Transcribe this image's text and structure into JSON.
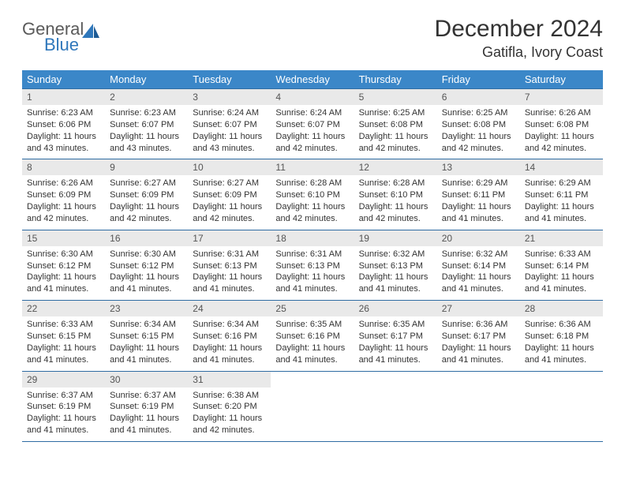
{
  "brand": {
    "top": "General",
    "bottom": "Blue"
  },
  "title": "December 2024",
  "location": "Gatifla, Ivory Coast",
  "colors": {
    "header_bg": "#3b87c8",
    "header_text": "#ffffff",
    "daynum_bg": "#e9e9e9",
    "border": "#2f6ca3",
    "logo_gray": "#5a5a5a",
    "logo_blue": "#2f77bb"
  },
  "weekdays": [
    "Sunday",
    "Monday",
    "Tuesday",
    "Wednesday",
    "Thursday",
    "Friday",
    "Saturday"
  ],
  "weeks": [
    [
      {
        "n": "1",
        "sr": "Sunrise: 6:23 AM",
        "ss": "Sunset: 6:06 PM",
        "dl1": "Daylight: 11 hours",
        "dl2": "and 43 minutes."
      },
      {
        "n": "2",
        "sr": "Sunrise: 6:23 AM",
        "ss": "Sunset: 6:07 PM",
        "dl1": "Daylight: 11 hours",
        "dl2": "and 43 minutes."
      },
      {
        "n": "3",
        "sr": "Sunrise: 6:24 AM",
        "ss": "Sunset: 6:07 PM",
        "dl1": "Daylight: 11 hours",
        "dl2": "and 43 minutes."
      },
      {
        "n": "4",
        "sr": "Sunrise: 6:24 AM",
        "ss": "Sunset: 6:07 PM",
        "dl1": "Daylight: 11 hours",
        "dl2": "and 42 minutes."
      },
      {
        "n": "5",
        "sr": "Sunrise: 6:25 AM",
        "ss": "Sunset: 6:08 PM",
        "dl1": "Daylight: 11 hours",
        "dl2": "and 42 minutes."
      },
      {
        "n": "6",
        "sr": "Sunrise: 6:25 AM",
        "ss": "Sunset: 6:08 PM",
        "dl1": "Daylight: 11 hours",
        "dl2": "and 42 minutes."
      },
      {
        "n": "7",
        "sr": "Sunrise: 6:26 AM",
        "ss": "Sunset: 6:08 PM",
        "dl1": "Daylight: 11 hours",
        "dl2": "and 42 minutes."
      }
    ],
    [
      {
        "n": "8",
        "sr": "Sunrise: 6:26 AM",
        "ss": "Sunset: 6:09 PM",
        "dl1": "Daylight: 11 hours",
        "dl2": "and 42 minutes."
      },
      {
        "n": "9",
        "sr": "Sunrise: 6:27 AM",
        "ss": "Sunset: 6:09 PM",
        "dl1": "Daylight: 11 hours",
        "dl2": "and 42 minutes."
      },
      {
        "n": "10",
        "sr": "Sunrise: 6:27 AM",
        "ss": "Sunset: 6:09 PM",
        "dl1": "Daylight: 11 hours",
        "dl2": "and 42 minutes."
      },
      {
        "n": "11",
        "sr": "Sunrise: 6:28 AM",
        "ss": "Sunset: 6:10 PM",
        "dl1": "Daylight: 11 hours",
        "dl2": "and 42 minutes."
      },
      {
        "n": "12",
        "sr": "Sunrise: 6:28 AM",
        "ss": "Sunset: 6:10 PM",
        "dl1": "Daylight: 11 hours",
        "dl2": "and 42 minutes."
      },
      {
        "n": "13",
        "sr": "Sunrise: 6:29 AM",
        "ss": "Sunset: 6:11 PM",
        "dl1": "Daylight: 11 hours",
        "dl2": "and 41 minutes."
      },
      {
        "n": "14",
        "sr": "Sunrise: 6:29 AM",
        "ss": "Sunset: 6:11 PM",
        "dl1": "Daylight: 11 hours",
        "dl2": "and 41 minutes."
      }
    ],
    [
      {
        "n": "15",
        "sr": "Sunrise: 6:30 AM",
        "ss": "Sunset: 6:12 PM",
        "dl1": "Daylight: 11 hours",
        "dl2": "and 41 minutes."
      },
      {
        "n": "16",
        "sr": "Sunrise: 6:30 AM",
        "ss": "Sunset: 6:12 PM",
        "dl1": "Daylight: 11 hours",
        "dl2": "and 41 minutes."
      },
      {
        "n": "17",
        "sr": "Sunrise: 6:31 AM",
        "ss": "Sunset: 6:13 PM",
        "dl1": "Daylight: 11 hours",
        "dl2": "and 41 minutes."
      },
      {
        "n": "18",
        "sr": "Sunrise: 6:31 AM",
        "ss": "Sunset: 6:13 PM",
        "dl1": "Daylight: 11 hours",
        "dl2": "and 41 minutes."
      },
      {
        "n": "19",
        "sr": "Sunrise: 6:32 AM",
        "ss": "Sunset: 6:13 PM",
        "dl1": "Daylight: 11 hours",
        "dl2": "and 41 minutes."
      },
      {
        "n": "20",
        "sr": "Sunrise: 6:32 AM",
        "ss": "Sunset: 6:14 PM",
        "dl1": "Daylight: 11 hours",
        "dl2": "and 41 minutes."
      },
      {
        "n": "21",
        "sr": "Sunrise: 6:33 AM",
        "ss": "Sunset: 6:14 PM",
        "dl1": "Daylight: 11 hours",
        "dl2": "and 41 minutes."
      }
    ],
    [
      {
        "n": "22",
        "sr": "Sunrise: 6:33 AM",
        "ss": "Sunset: 6:15 PM",
        "dl1": "Daylight: 11 hours",
        "dl2": "and 41 minutes."
      },
      {
        "n": "23",
        "sr": "Sunrise: 6:34 AM",
        "ss": "Sunset: 6:15 PM",
        "dl1": "Daylight: 11 hours",
        "dl2": "and 41 minutes."
      },
      {
        "n": "24",
        "sr": "Sunrise: 6:34 AM",
        "ss": "Sunset: 6:16 PM",
        "dl1": "Daylight: 11 hours",
        "dl2": "and 41 minutes."
      },
      {
        "n": "25",
        "sr": "Sunrise: 6:35 AM",
        "ss": "Sunset: 6:16 PM",
        "dl1": "Daylight: 11 hours",
        "dl2": "and 41 minutes."
      },
      {
        "n": "26",
        "sr": "Sunrise: 6:35 AM",
        "ss": "Sunset: 6:17 PM",
        "dl1": "Daylight: 11 hours",
        "dl2": "and 41 minutes."
      },
      {
        "n": "27",
        "sr": "Sunrise: 6:36 AM",
        "ss": "Sunset: 6:17 PM",
        "dl1": "Daylight: 11 hours",
        "dl2": "and 41 minutes."
      },
      {
        "n": "28",
        "sr": "Sunrise: 6:36 AM",
        "ss": "Sunset: 6:18 PM",
        "dl1": "Daylight: 11 hours",
        "dl2": "and 41 minutes."
      }
    ],
    [
      {
        "n": "29",
        "sr": "Sunrise: 6:37 AM",
        "ss": "Sunset: 6:19 PM",
        "dl1": "Daylight: 11 hours",
        "dl2": "and 41 minutes."
      },
      {
        "n": "30",
        "sr": "Sunrise: 6:37 AM",
        "ss": "Sunset: 6:19 PM",
        "dl1": "Daylight: 11 hours",
        "dl2": "and 41 minutes."
      },
      {
        "n": "31",
        "sr": "Sunrise: 6:38 AM",
        "ss": "Sunset: 6:20 PM",
        "dl1": "Daylight: 11 hours",
        "dl2": "and 42 minutes."
      },
      {
        "empty": true
      },
      {
        "empty": true
      },
      {
        "empty": true
      },
      {
        "empty": true
      }
    ]
  ]
}
